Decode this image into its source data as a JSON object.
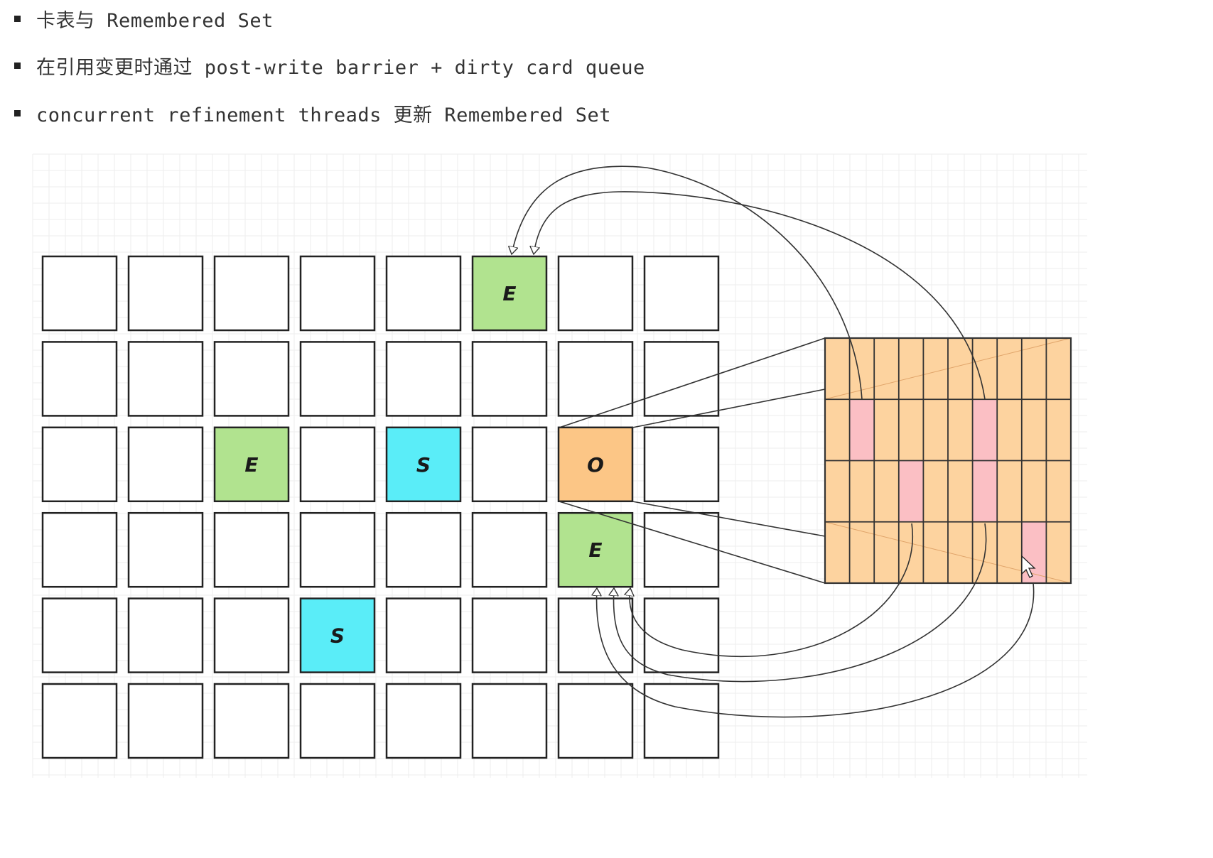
{
  "bullets": [
    {
      "text": "卡表与 Remembered Set"
    },
    {
      "text": "在引用变更时通过 post-write barrier + dirty card queue"
    },
    {
      "text": "concurrent refinement threads 更新 Remembered Set"
    }
  ],
  "regions": {
    "rows": 6,
    "cols": 8,
    "labeled": [
      {
        "row": 0,
        "col": 5,
        "label": "E",
        "fill": "#b1e38f"
      },
      {
        "row": 2,
        "col": 2,
        "label": "E",
        "fill": "#b1e38f"
      },
      {
        "row": 2,
        "col": 4,
        "label": "S",
        "fill": "#5aedf8"
      },
      {
        "row": 2,
        "col": 6,
        "label": "O",
        "fill": "#fcc686"
      },
      {
        "row": 3,
        "col": 6,
        "label": "E",
        "fill": "#b1e38f"
      },
      {
        "row": 4,
        "col": 3,
        "label": "S",
        "fill": "#5aedf8"
      }
    ]
  },
  "card_table": {
    "rows": 4,
    "cols": 10,
    "fill": "#fdd39f",
    "dirty_fill": "#fbbfc4",
    "dirty_cards": [
      {
        "row": 1,
        "col": 1
      },
      {
        "row": 1,
        "col": 6
      },
      {
        "row": 2,
        "col": 3
      },
      {
        "row": 2,
        "col": 6
      },
      {
        "row": 3,
        "col": 8
      }
    ]
  },
  "colors": {
    "eden": "#b1e38f",
    "survivor": "#5aedf8",
    "old": "#fcc686",
    "card": "#fdd39f",
    "dirty_card": "#fbbfc4",
    "grid": "#eeeeee",
    "stroke": "#222222"
  }
}
